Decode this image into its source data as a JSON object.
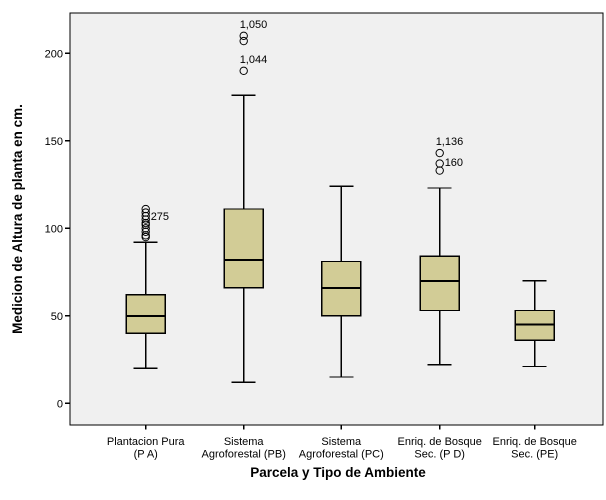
{
  "chart_data": {
    "type": "boxplot",
    "title": "",
    "xlabel": "Parcela y Tipo de Ambiente",
    "ylabel": "Medicion de Altura de planta en cm.",
    "yticks": [
      0,
      50,
      100,
      150,
      200
    ],
    "ylim": [
      -12,
      223
    ],
    "grid": false,
    "legend": "none",
    "colors": {
      "canvas_bg": "#ffffff",
      "plot_bg": "#f0f0f0",
      "box_fill": "#d2cc96",
      "box_border": "#000000",
      "axis_color": "#000000",
      "text_color": "#000000"
    },
    "categories": [
      {
        "lines": [
          "Plantacion Pura",
          "(P A)"
        ]
      },
      {
        "lines": [
          "Sistema",
          "Agroforestal (PB)"
        ]
      },
      {
        "lines": [
          "Sistema",
          "Agroforestal (PC)"
        ]
      },
      {
        "lines": [
          "Enriq. de Bosque",
          "Sec. (P D)"
        ]
      },
      {
        "lines": [
          "Enriq. de Bosque",
          "Sec. (PE)"
        ]
      }
    ],
    "series": [
      {
        "name": "Plantacion Pura (P A)",
        "whisker_low": 20,
        "q1": 40,
        "median": 50,
        "q3": 62,
        "whisker_high": 92,
        "outliers": [
          95,
          96,
          98,
          100,
          102,
          103,
          105,
          107,
          109,
          111
        ],
        "outlier_labels": [
          {
            "text": "275",
            "value": 107,
            "position": "right"
          }
        ]
      },
      {
        "name": "Sistema Agroforestal (PB)",
        "whisker_low": 12,
        "q1": 66,
        "median": 82,
        "q3": 111,
        "whisker_high": 176,
        "outliers": [
          190,
          207,
          210
        ],
        "outlier_labels": [
          {
            "text": "1,050",
            "value": 210,
            "position": "above"
          },
          {
            "text": "1,044",
            "value": 190,
            "position": "above"
          }
        ]
      },
      {
        "name": "Sistema Agroforestal (PC)",
        "whisker_low": 15,
        "q1": 50,
        "median": 66,
        "q3": 81,
        "whisker_high": 124,
        "outliers": [],
        "outlier_labels": []
      },
      {
        "name": "Enriq. de Bosque Sec. (P D)",
        "whisker_low": 22,
        "q1": 53,
        "median": 70,
        "q3": 84,
        "whisker_high": 123,
        "outliers": [
          133,
          137,
          143
        ],
        "outlier_labels": [
          {
            "text": "1,136",
            "value": 143,
            "position": "above"
          },
          {
            "text": "160",
            "value": 138,
            "position": "right"
          }
        ]
      },
      {
        "name": "Enriq. de Bosque Sec. (PE)",
        "whisker_low": 21,
        "q1": 36,
        "median": 45,
        "q3": 53,
        "whisker_high": 70,
        "outliers": [],
        "outlier_labels": []
      }
    ]
  }
}
